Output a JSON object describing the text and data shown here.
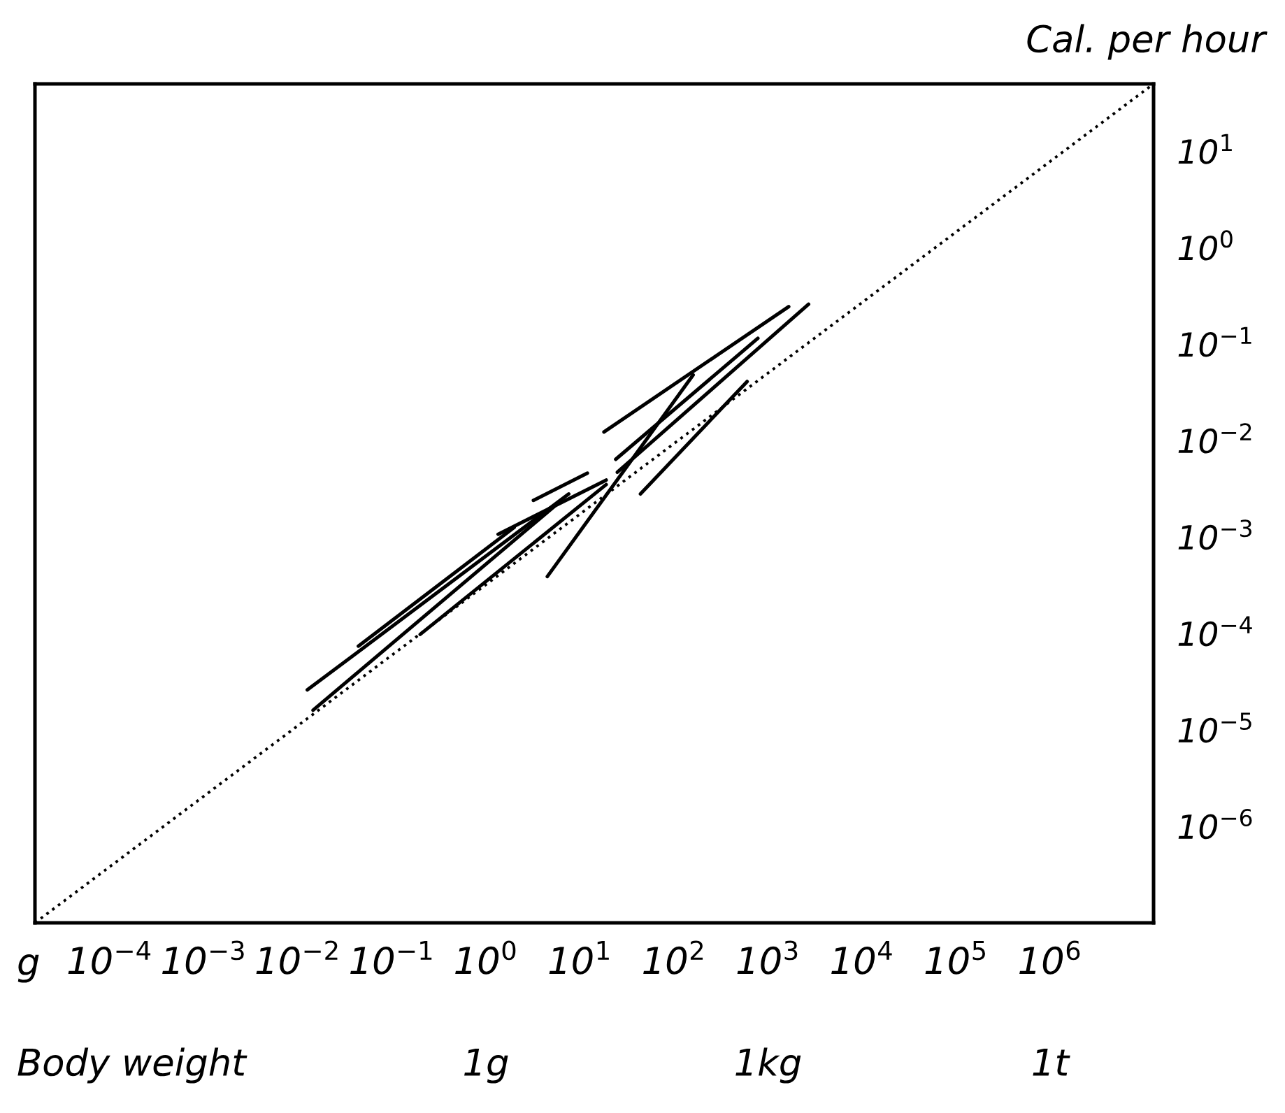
{
  "chart_data": {
    "type": "line",
    "ylabel": "Cal. per hour",
    "xlabel": "Body weight",
    "log": "xy",
    "grid": false,
    "legend": false,
    "annotations": [
      "g",
      "1g",
      "1kg",
      "1t"
    ],
    "xlim": [
      1.6e-05,
      12600000.0
    ],
    "ylim": [
      1e-07,
      50
    ],
    "xticks": [
      {
        "value": 0.0001,
        "label": "10$^{−4}$"
      },
      {
        "value": 0.001,
        "label": "10$^{−3}$"
      },
      {
        "value": 0.01,
        "label": "10$^{−2}$"
      },
      {
        "value": 0.1,
        "label": "10$^{−1}$"
      },
      {
        "value": 1,
        "label": "10$^{0}$"
      },
      {
        "value": 10,
        "label": "10$^{1}$"
      },
      {
        "value": 100,
        "label": "10$^{2}$"
      },
      {
        "value": 1000,
        "label": "10$^{3}$"
      },
      {
        "value": 10000,
        "label": "10$^{4}$"
      },
      {
        "value": 100000,
        "label": "10$^{5}$"
      },
      {
        "value": 1000000,
        "label": "10$^{6}$"
      }
    ],
    "yticks": [
      {
        "value": 1e-06,
        "label": "10$^{−6}$"
      },
      {
        "value": 1e-05,
        "label": "10$^{−5}$"
      },
      {
        "value": 0.0001,
        "label": "10$^{−4}$"
      },
      {
        "value": 0.001,
        "label": "10$^{−3}$"
      },
      {
        "value": 0.01,
        "label": "10$^{−2}$"
      },
      {
        "value": 0.1,
        "label": "10$^{−1}$"
      },
      {
        "value": 1,
        "label": "10$^{0}$"
      },
      {
        "value": 10,
        "label": "10$^{1}$"
      }
    ],
    "series": [
      {
        "color": "#000000",
        "line_style": "dotted",
        "x": [
          1.6e-05,
          12600000.0
        ],
        "values": [
          1e-07,
          50
        ]
      },
      {
        "color": "#000000",
        "line_style": "solid",
        "x": [
          0.0126,
          7.6
        ],
        "values": [
          2.6e-05,
          0.0028
        ]
      },
      {
        "color": "#000000",
        "line_style": "solid",
        "x": [
          0.0145,
          5.4
        ],
        "values": [
          1.6e-05,
          0.0021
        ]
      },
      {
        "color": "#000000",
        "line_style": "solid",
        "x": [
          0.044,
          2.0
        ],
        "values": [
          7.4e-05,
          0.00126
        ]
      },
      {
        "color": "#000000",
        "line_style": "solid",
        "x": [
          0.2,
          19
        ],
        "values": [
          9.8e-05,
          0.0035
        ]
      },
      {
        "color": "#000000",
        "line_style": "solid",
        "x": [
          1.35,
          19
        ],
        "values": [
          0.00107,
          0.0039
        ]
      },
      {
        "color": "#000000",
        "line_style": "solid",
        "x": [
          3.2,
          12
        ],
        "values": [
          0.0024,
          0.0046
        ]
      },
      {
        "color": "#000000",
        "line_style": "solid",
        "x": [
          4.5,
          160
        ],
        "values": [
          0.00039,
          0.048
        ]
      },
      {
        "color": "#000000",
        "line_style": "solid",
        "x": [
          18,
          1660
        ],
        "values": [
          0.0123,
          0.245
        ]
      },
      {
        "color": "#000000",
        "line_style": "solid",
        "x": [
          25,
          2700
        ],
        "values": [
          0.0047,
          0.26
        ]
      },
      {
        "color": "#000000",
        "line_style": "solid",
        "x": [
          44,
          600
        ],
        "values": [
          0.0028,
          0.041
        ]
      },
      {
        "color": "#000000",
        "line_style": "solid",
        "x": [
          24,
          780
        ],
        "values": [
          0.0064,
          0.115
        ]
      }
    ]
  }
}
